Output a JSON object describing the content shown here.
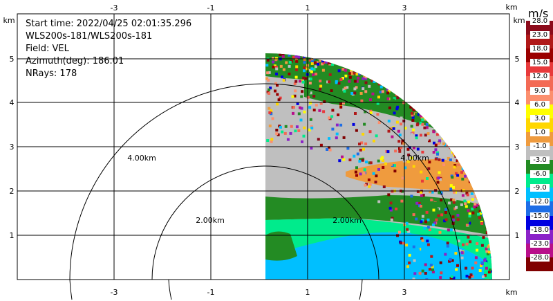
{
  "info": {
    "start_time": "Start time: 2022/04/25 02:01:35.296",
    "instrument": "WLS200s-181/WLS200s-181",
    "field": "Field: VEL",
    "azimuth": "Azimuth(deg): 186.01",
    "nrays": "NRays: 178"
  },
  "axes": {
    "x_unit": "km",
    "y_unit": "km",
    "x_ticks": [
      "-3",
      "-1",
      "1",
      "3"
    ],
    "y_ticks": [
      "5",
      "4",
      "3",
      "2",
      "1"
    ]
  },
  "rings": {
    "ring_4": "4.00km",
    "ring_2": "2.00km"
  },
  "colorbar": {
    "unit": "m/s",
    "levels": [
      "28.0",
      "23.0",
      "18.0",
      "15.0",
      "12.0",
      "9.0",
      "6.0",
      "3.0",
      "1.0",
      "-1.0",
      "-3.0",
      "-6.0",
      "-9.0",
      "-12.0",
      "-15.0",
      "-18.0",
      "-23.0",
      "-28.0"
    ],
    "colors": [
      "#8b0a1a",
      "#b01919",
      "#9b0000",
      "#e8393b",
      "#f36a55",
      "#fc8f6e",
      "#ffff00",
      "#ffd700",
      "#ef9b3e",
      "#bfbfbf",
      "#238b23",
      "#00eb8c",
      "#00bfff",
      "#1e6ee6",
      "#0000e0",
      "#8b22c8",
      "#b80f8a",
      "#800000"
    ]
  }
}
